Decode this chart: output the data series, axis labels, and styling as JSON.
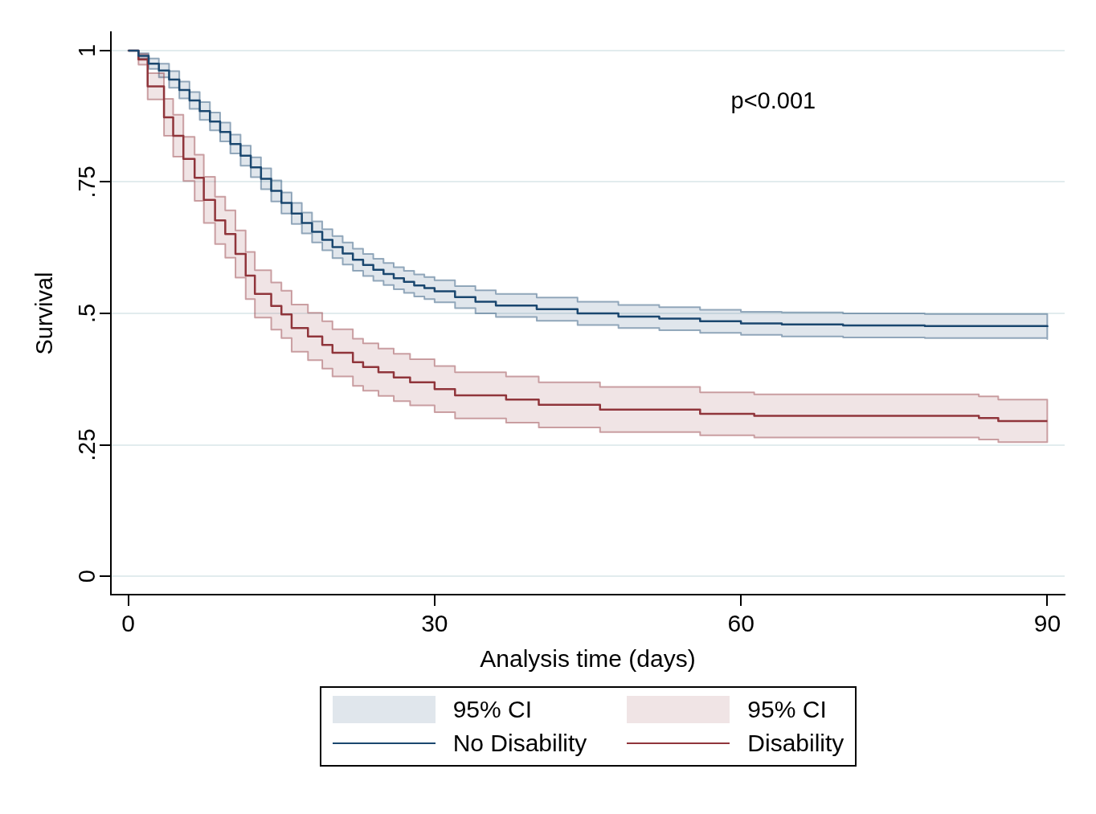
{
  "chart_data": {
    "type": "step",
    "xlabel": "Analysis time (days)",
    "ylabel": "Survival",
    "xlim": [
      -1.7,
      91.7
    ],
    "xticks": [
      0,
      30,
      60,
      90
    ],
    "ylim": [
      -0.035,
      1.035
    ],
    "yticks": [
      {
        "value": 0,
        "label": "0"
      },
      {
        "value": 0.25,
        "label": ".25"
      },
      {
        "value": 0.5,
        "label": ".5"
      },
      {
        "value": 0.75,
        "label": ".75"
      },
      {
        "value": 1,
        "label": "1"
      }
    ],
    "grid": "y",
    "legend": "bottom",
    "line_style": "solid",
    "marker": "none",
    "annotations": [
      "p<0.001",
      "95% CI",
      "95% CI"
    ],
    "series": [
      {
        "name": "No Disability",
        "color": "#1a476f",
        "x": [
          0,
          1,
          2,
          3,
          4,
          5,
          6,
          7,
          8,
          9,
          10,
          11,
          12,
          13,
          14,
          15,
          16,
          17,
          18,
          19,
          20,
          21,
          22,
          23,
          24,
          25,
          26,
          27,
          28,
          29,
          30,
          32,
          34,
          36,
          40,
          44,
          48,
          52,
          56,
          60,
          64,
          70,
          78,
          90
        ],
        "values": [
          1,
          0.99,
          0.975,
          0.962,
          0.945,
          0.925,
          0.905,
          0.885,
          0.865,
          0.845,
          0.822,
          0.8,
          0.778,
          0.756,
          0.733,
          0.71,
          0.69,
          0.672,
          0.655,
          0.64,
          0.626,
          0.614,
          0.602,
          0.592,
          0.583,
          0.575,
          0.567,
          0.56,
          0.553,
          0.548,
          0.542,
          0.531,
          0.522,
          0.515,
          0.508,
          0.5,
          0.494,
          0.49,
          0.485,
          0.481,
          0.479,
          0.477,
          0.476,
          0.474
        ],
        "lower": [
          1,
          0.985,
          0.965,
          0.949,
          0.929,
          0.909,
          0.889,
          0.868,
          0.848,
          0.827,
          0.804,
          0.781,
          0.759,
          0.736,
          0.713,
          0.69,
          0.67,
          0.652,
          0.635,
          0.62,
          0.605,
          0.593,
          0.581,
          0.571,
          0.562,
          0.554,
          0.546,
          0.539,
          0.532,
          0.527,
          0.521,
          0.51,
          0.5,
          0.493,
          0.486,
          0.478,
          0.472,
          0.468,
          0.463,
          0.459,
          0.456,
          0.454,
          0.453,
          0.451
        ],
        "upper": [
          1,
          0.995,
          0.985,
          0.975,
          0.961,
          0.941,
          0.921,
          0.902,
          0.882,
          0.863,
          0.84,
          0.819,
          0.797,
          0.776,
          0.753,
          0.73,
          0.71,
          0.692,
          0.675,
          0.66,
          0.647,
          0.635,
          0.623,
          0.613,
          0.604,
          0.596,
          0.588,
          0.581,
          0.574,
          0.569,
          0.563,
          0.552,
          0.544,
          0.537,
          0.53,
          0.522,
          0.516,
          0.512,
          0.507,
          0.503,
          0.502,
          0.5,
          0.499,
          0.497
        ]
      },
      {
        "name": "Disability",
        "color": "#90353b",
        "x": [
          0,
          1,
          1.9,
          3.5,
          4.4,
          5.4,
          6.5,
          7.4,
          8.5,
          9.5,
          10.5,
          11.5,
          12.4,
          14,
          15,
          16,
          17.6,
          19,
          20,
          22,
          23,
          24.5,
          26,
          27.6,
          30,
          32,
          37,
          40.2,
          46.2,
          56,
          61.3,
          83.3,
          85.2,
          90
        ],
        "values": [
          1,
          0.983,
          0.932,
          0.873,
          0.838,
          0.794,
          0.758,
          0.716,
          0.677,
          0.651,
          0.613,
          0.572,
          0.537,
          0.514,
          0.498,
          0.472,
          0.456,
          0.44,
          0.425,
          0.407,
          0.398,
          0.388,
          0.378,
          0.369,
          0.356,
          0.344,
          0.336,
          0.326,
          0.317,
          0.309,
          0.305,
          0.301,
          0.295,
          0.295
        ],
        "lower": [
          1,
          0.973,
          0.907,
          0.838,
          0.798,
          0.752,
          0.714,
          0.672,
          0.632,
          0.606,
          0.568,
          0.527,
          0.492,
          0.469,
          0.453,
          0.427,
          0.411,
          0.395,
          0.38,
          0.362,
          0.353,
          0.343,
          0.333,
          0.325,
          0.312,
          0.3,
          0.292,
          0.283,
          0.274,
          0.268,
          0.264,
          0.26,
          0.255,
          0.255
        ],
        "upper": [
          1,
          0.993,
          0.957,
          0.908,
          0.878,
          0.836,
          0.802,
          0.76,
          0.722,
          0.696,
          0.658,
          0.617,
          0.582,
          0.559,
          0.543,
          0.517,
          0.501,
          0.485,
          0.47,
          0.452,
          0.443,
          0.433,
          0.423,
          0.413,
          0.4,
          0.388,
          0.38,
          0.369,
          0.36,
          0.35,
          0.346,
          0.342,
          0.336,
          0.336
        ]
      }
    ]
  }
}
